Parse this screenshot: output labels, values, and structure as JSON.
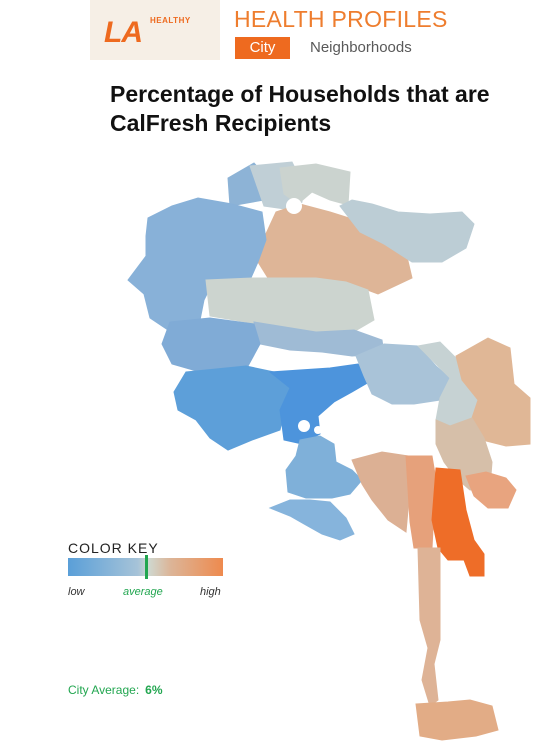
{
  "header": {
    "logo_main": "LA",
    "logo_sub": "HEALTHY",
    "app_title": "HEALTH PROFILES",
    "tabs": [
      {
        "label": "City",
        "active": true
      },
      {
        "label": "Neighborhoods",
        "active": false
      }
    ]
  },
  "map": {
    "title": "Percentage of Households that are CalFresh Recipients",
    "regions": [
      {
        "name": "north-west-valley",
        "color": "#8db3d6"
      },
      {
        "name": "north-valley-grey",
        "color": "#c0cfd6"
      },
      {
        "name": "north-top",
        "color": "#cbd3cf"
      },
      {
        "name": "east-valley",
        "color": "#deb597"
      },
      {
        "name": "sunland-tujunga",
        "color": "#bccdd5"
      },
      {
        "name": "west-valley-south",
        "color": "#88b1d8"
      },
      {
        "name": "central-valley",
        "color": "#ccd4cf"
      },
      {
        "name": "mid-valley-lower",
        "color": "#9fbbd5"
      },
      {
        "name": "mid-valley-blue",
        "color": "#80abd6"
      },
      {
        "name": "westside",
        "color": "#5d9fd9"
      },
      {
        "name": "hollywood",
        "color": "#4d94dc"
      },
      {
        "name": "silver-lake",
        "color": "#a9c3d8"
      },
      {
        "name": "northeast-la",
        "color": "#c6d2d3"
      },
      {
        "name": "eastside-tan",
        "color": "#e0b796"
      },
      {
        "name": "east-hills",
        "color": "#d6bfa9"
      },
      {
        "name": "south-la-west",
        "color": "#7fb0d9"
      },
      {
        "name": "south-central-a",
        "color": "#dcb094"
      },
      {
        "name": "south-central-b",
        "color": "#e6a17b"
      },
      {
        "name": "south-central-high",
        "color": "#ee6d28"
      },
      {
        "name": "east-south",
        "color": "#e8a47f"
      },
      {
        "name": "harbor-corridor",
        "color": "#deb396"
      },
      {
        "name": "harbor-south",
        "color": "#e2ac86"
      },
      {
        "name": "coastal-south",
        "color": "#86b4dc"
      }
    ]
  },
  "color_key": {
    "title": "COLOR KEY",
    "low_label": "low",
    "average_label": "average",
    "high_label": "high",
    "low_color": "#5a9fd8",
    "average_color": "#22a650",
    "high_color": "#ee6a1f"
  },
  "city_average": {
    "label": "City Average:",
    "value": "6%"
  }
}
